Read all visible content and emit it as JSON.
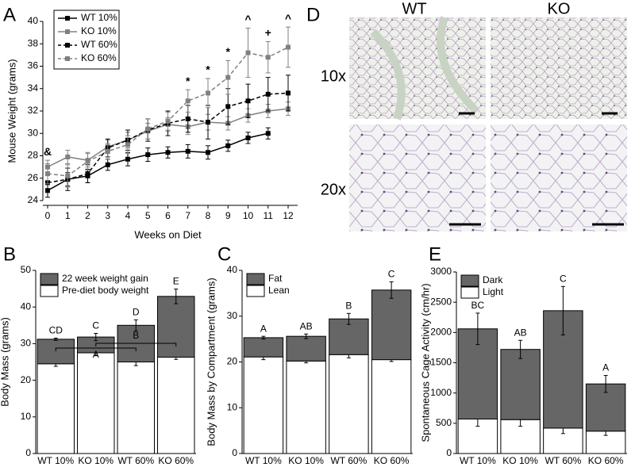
{
  "chart_data": [
    {
      "type": "line",
      "panel": "A",
      "xlabel": "Weeks on Diet",
      "ylabel": "Mouse Weight (grams)",
      "x": [
        0,
        1,
        2,
        3,
        4,
        5,
        6,
        7,
        8,
        9,
        10,
        11,
        12
      ],
      "xlim": [
        0,
        12
      ],
      "xticks": [
        0,
        1,
        2,
        3,
        4,
        5,
        6,
        7,
        8,
        9,
        10,
        11,
        12
      ],
      "ylim": [
        24,
        40
      ],
      "yticks": [
        24,
        26,
        28,
        30,
        32,
        34,
        36,
        38,
        40
      ],
      "legend": "upper left",
      "series": [
        {
          "name": "WT 10%",
          "color": "#000000",
          "dash": false,
          "values": [
            24.9,
            25.9,
            26.2,
            27.2,
            27.7,
            28.1,
            28.3,
            28.4,
            28.3,
            28.9,
            29.6,
            30.0,
            null
          ],
          "errors": [
            0.6,
            0.6,
            0.6,
            0.5,
            0.6,
            0.6,
            0.5,
            0.6,
            0.6,
            0.5,
            0.5,
            0.5,
            null
          ]
        },
        {
          "name": "KO 10%",
          "color": "#808080",
          "dash": false,
          "values": [
            27.0,
            27.9,
            27.6,
            28.8,
            29.4,
            30.2,
            30.8,
            30.6,
            31.0,
            30.9,
            31.6,
            32.0,
            32.2
          ],
          "errors": [
            0.6,
            0.6,
            0.6,
            0.6,
            0.7,
            0.7,
            0.6,
            0.7,
            0.7,
            0.6,
            0.6,
            0.6,
            0.6
          ]
        },
        {
          "name": "WT 60%",
          "color": "#000000",
          "dash": true,
          "values": [
            25.6,
            25.9,
            26.4,
            28.7,
            29.4,
            30.3,
            30.9,
            31.3,
            31.0,
            32.4,
            32.9,
            33.5,
            33.6
          ],
          "errors": [
            0.8,
            1.0,
            0.8,
            0.8,
            0.9,
            1.0,
            1.1,
            1.2,
            1.5,
            1.6,
            1.5,
            1.5,
            1.6
          ]
        },
        {
          "name": "KO 60%",
          "color": "#808080",
          "dash": true,
          "values": [
            26.4,
            26.2,
            27.5,
            28.4,
            29.0,
            30.4,
            31.1,
            32.9,
            33.6,
            35.0,
            37.2,
            36.8,
            37.7
          ],
          "errors": [
            0.9,
            1.0,
            0.8,
            0.7,
            0.8,
            0.9,
            0.8,
            1.0,
            1.3,
            1.5,
            2.2,
            1.4,
            1.8
          ]
        }
      ],
      "annotations": [
        {
          "x": 0,
          "text": "&"
        },
        {
          "x": 7,
          "text": "*"
        },
        {
          "x": 8,
          "text": "*"
        },
        {
          "x": 9,
          "text": "*"
        },
        {
          "x": 10,
          "text": "^"
        },
        {
          "x": 11,
          "text": "+"
        },
        {
          "x": 12,
          "text": "^"
        }
      ]
    },
    {
      "type": "stacked_bar",
      "panel": "B",
      "ylabel": "Body Mass (grams)",
      "categories": [
        "WT 10%",
        "KO 10%",
        "WT 60%",
        "KO 60%"
      ],
      "ylim": [
        0,
        50
      ],
      "yticks": [
        0,
        10,
        20,
        30,
        40,
        50
      ],
      "series": [
        {
          "name": "Pre-diet body weight",
          "color": "#ffffff",
          "values": [
            24.5,
            27.5,
            25.0,
            26.3
          ],
          "errors": [
            0.7,
            0.8,
            1.0,
            0.6
          ]
        },
        {
          "name": "22 week weight gain",
          "color": "#666666",
          "values": [
            6.7,
            4.3,
            10.0,
            16.6
          ],
          "errors": [
            0.3,
            1.0,
            1.5,
            2.0
          ]
        }
      ],
      "letters": [
        "CD",
        "C",
        "D",
        "E"
      ],
      "brackets": [
        {
          "label": "A",
          "from": 0,
          "to": 2
        },
        {
          "label": "B",
          "from": 1,
          "to": 3
        }
      ]
    },
    {
      "type": "stacked_bar",
      "panel": "C",
      "ylabel": "Body Mass by Compartment (grams)",
      "categories": [
        "WT 10%",
        "KO 10%",
        "WT 60%",
        "KO 60%"
      ],
      "ylim": [
        0,
        40
      ],
      "yticks": [
        0,
        10,
        20,
        30,
        40
      ],
      "series": [
        {
          "name": "Lean",
          "color": "#ffffff",
          "values": [
            21.1,
            20.2,
            21.6,
            20.5
          ],
          "errors": [
            0.6,
            0.4,
            0.7,
            0.4
          ]
        },
        {
          "name": "Fat",
          "color": "#666666",
          "values": [
            4.2,
            5.4,
            7.8,
            15.2
          ],
          "errors": [
            0.3,
            0.5,
            1.2,
            1.8
          ]
        }
      ],
      "letters": [
        "A",
        "AB",
        "B",
        "C"
      ]
    },
    {
      "type": "stacked_bar",
      "panel": "E",
      "ylabel": "Spontaneous Cage Activity (cm/hr)",
      "categories": [
        "WT 10%",
        "KO 10%",
        "WT 60%",
        "KO 60%"
      ],
      "ylim": [
        0,
        3000
      ],
      "yticks": [
        0,
        500,
        1000,
        1500,
        2000,
        2500,
        3000
      ],
      "series": [
        {
          "name": "Light",
          "color": "#ffffff",
          "values": [
            570,
            560,
            420,
            370
          ],
          "errors": [
            120,
            110,
            90,
            70
          ]
        },
        {
          "name": "Dark",
          "color": "#666666",
          "values": [
            1490,
            1160,
            1940,
            780
          ],
          "errors": [
            260,
            150,
            400,
            140
          ]
        }
      ],
      "letters": [
        "BC",
        "AB",
        "C",
        "A"
      ]
    }
  ],
  "panel_d": {
    "panel": "D",
    "columns": [
      "WT",
      "KO"
    ],
    "rows": [
      "10x",
      "20x"
    ]
  }
}
